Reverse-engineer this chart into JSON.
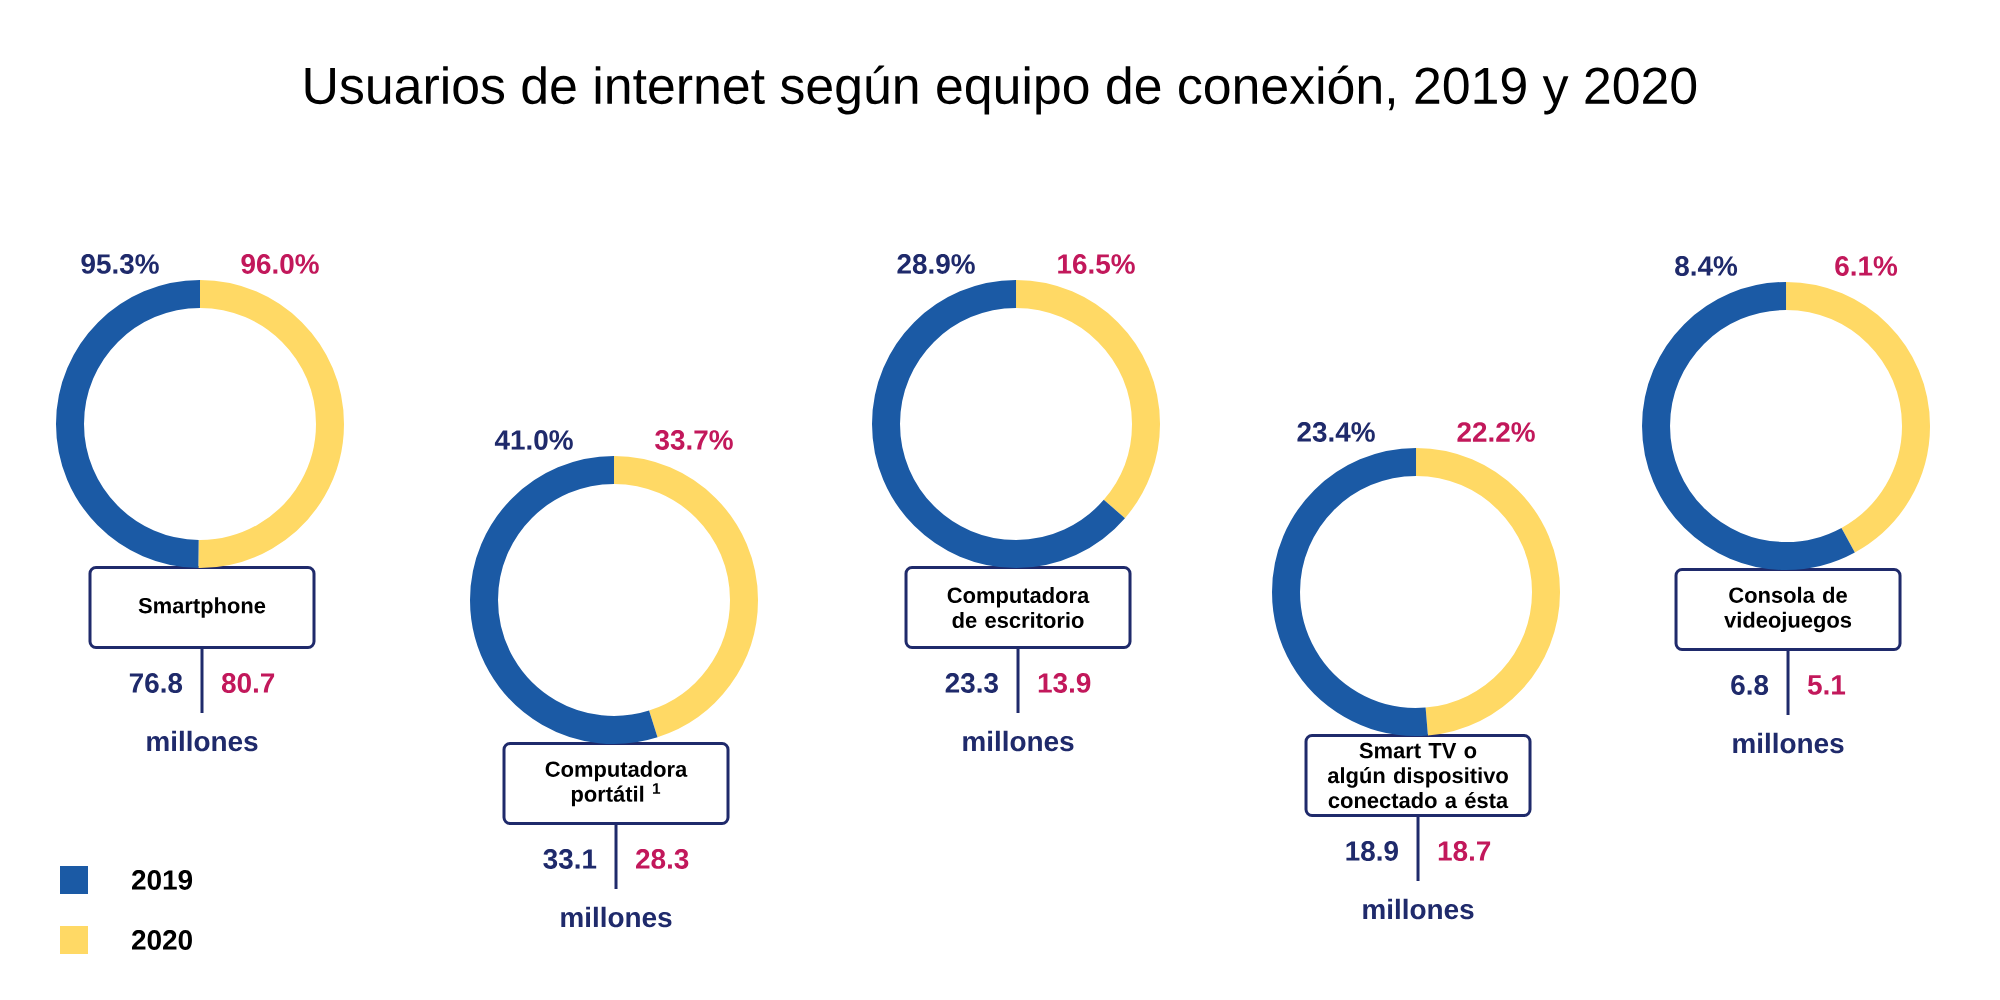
{
  "chart_data": [
    {
      "type": "other",
      "title": "Usuarios de internet según equipo de conexión, 2019 y 2020"
    },
    {
      "type": "other",
      "categories": [
        "Smartphone"
      ],
      "series": [
        {
          "name": "2019",
          "color": "#1b5aa5",
          "values": [
            95.3
          ],
          "value_labels": [
            "95.3%"
          ]
        },
        {
          "name": "2020",
          "color": "#ffd965",
          "values": [
            96.0
          ],
          "value_labels": [
            "96.0%"
          ]
        },
        {
          "color": "#1f2a6b",
          "values": [
            76.8
          ]
        },
        {
          "color": "#c2185b",
          "values": [
            80.7
          ]
        }
      ],
      "data_labels": true,
      "annotations": [
        "millones"
      ],
      "legend": "bottom left"
    },
    {
      "type": "other",
      "categories": [
        "Computadora portátil $^{1}$"
      ],
      "series": [
        {
          "color": "#1b5aa5",
          "values": [
            41.0
          ],
          "value_labels": [
            "41.0%"
          ]
        },
        {
          "color": "#ffd965",
          "values": [
            33.7
          ],
          "value_labels": [
            "33.7%"
          ]
        },
        {
          "color": "#1f2a6b",
          "values": [
            33.1
          ]
        },
        {
          "color": "#c2185b",
          "values": [
            28.3
          ]
        }
      ],
      "data_labels": true,
      "annotations": [
        "millones"
      ]
    },
    {
      "type": "other",
      "categories": [
        "Computadora de escritorio"
      ],
      "series": [
        {
          "color": "#1b5aa5",
          "values": [
            28.9
          ],
          "value_labels": [
            "28.9%"
          ]
        },
        {
          "color": "#ffd965",
          "values": [
            16.5
          ],
          "value_labels": [
            "16.5%"
          ]
        },
        {
          "color": "#1f2a6b",
          "values": [
            23.3
          ]
        },
        {
          "color": "#c2185b",
          "values": [
            13.9
          ]
        }
      ],
      "data_labels": true,
      "annotations": [
        "millones"
      ]
    },
    {
      "type": "other",
      "categories": [
        "Smart TV o algún dispositivo conectado a ésta"
      ],
      "series": [
        {
          "color": "#1b5aa5",
          "values": [
            23.4
          ],
          "value_labels": [
            "23.4%"
          ]
        },
        {
          "color": "#ffd965",
          "values": [
            22.2
          ],
          "value_labels": [
            "22.2%"
          ]
        },
        {
          "color": "#1f2a6b",
          "values": [
            18.9
          ]
        },
        {
          "color": "#c2185b",
          "values": [
            18.7
          ]
        }
      ],
      "data_labels": true,
      "annotations": [
        "millones"
      ]
    },
    {
      "type": "other",
      "categories": [
        "Consola de videojuegos"
      ],
      "series": [
        {
          "color": "#1b5aa5",
          "values": [
            8.4
          ],
          "value_labels": [
            "8.4%"
          ]
        },
        {
          "color": "#ffd965",
          "values": [
            6.1
          ],
          "value_labels": [
            "6.1%"
          ]
        },
        {
          "color": "#1f2a6b",
          "values": [
            6.8
          ]
        },
        {
          "color": "#c2185b",
          "values": [
            5.1
          ]
        }
      ],
      "data_labels": true,
      "annotations": [
        "millones"
      ]
    }
  ]
}
